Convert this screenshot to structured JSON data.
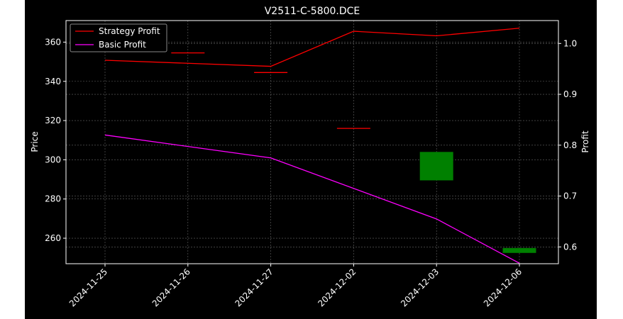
{
  "chart_data": {
    "type": "candlestick+line",
    "title": "V2511-C-5800.DCE",
    "xlabel": "",
    "ylabel_left": "Price",
    "ylabel_right": "Profit",
    "categories": [
      "2024-11-25",
      "2024-11-26",
      "2024-11-27",
      "2024-12-02",
      "2024-12-03",
      "2024-12-06"
    ],
    "ylim_left": [
      247,
      371
    ],
    "yticks_left": [
      260,
      280,
      300,
      320,
      340,
      360
    ],
    "ylim_right": [
      0.567,
      1.045
    ],
    "yticks_right": [
      0.6,
      0.7,
      0.8,
      0.9,
      1.0
    ],
    "candles": [
      {
        "date": "2024-11-26",
        "open": 354.5,
        "close": 354.5,
        "high": 354.5,
        "low": 354.5,
        "color": "#ff0000"
      },
      {
        "date": "2024-11-27",
        "open": 344.5,
        "close": 344.5,
        "high": 344.5,
        "low": 344.5,
        "color": "#ff0000"
      },
      {
        "date": "2024-12-02",
        "open": 316.0,
        "close": 316.0,
        "high": 316.0,
        "low": 316.0,
        "color": "#ff0000"
      },
      {
        "date": "2024-12-03",
        "open": 289.5,
        "close": 304.0,
        "high": 304.0,
        "low": 289.5,
        "color": "#008000"
      },
      {
        "date": "2024-12-06",
        "open": 252.5,
        "close": 255.0,
        "high": 255.0,
        "low": 252.5,
        "color": "#008000"
      }
    ],
    "series": [
      {
        "name": "Strategy Profit",
        "color": "#ff0000",
        "axis": "right",
        "values": [
          0.967,
          null,
          0.955,
          1.024,
          1.015,
          1.03
        ]
      },
      {
        "name": "Basic Profit",
        "color": "#ff00ff",
        "axis": "right",
        "values": [
          0.82,
          null,
          0.775,
          null,
          0.655,
          0.568
        ]
      }
    ],
    "legend_position": "top-left",
    "grid": true
  }
}
